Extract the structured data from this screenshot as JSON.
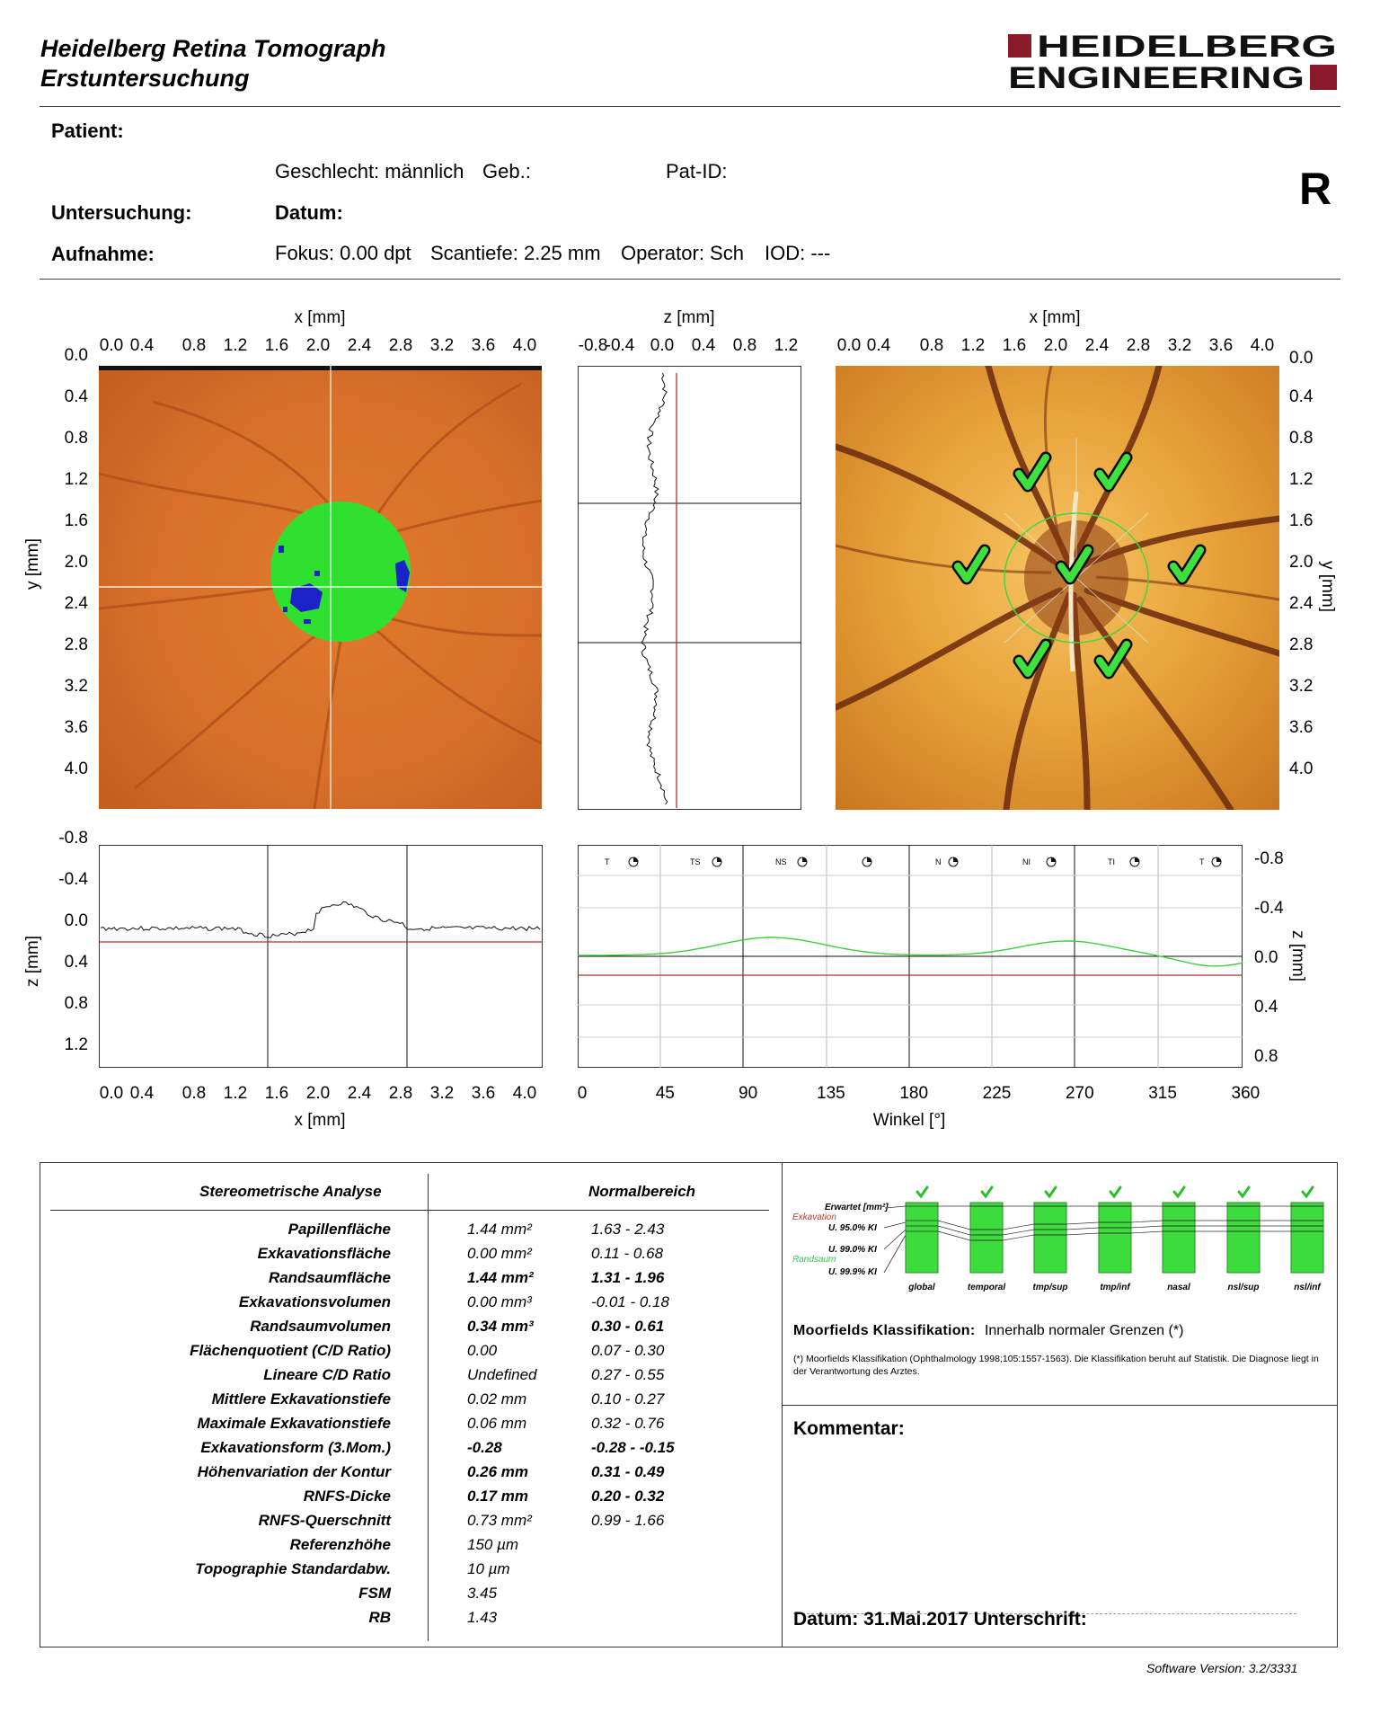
{
  "header": {
    "title_line1": "Heidelberg Retina Tomograph",
    "title_line2": "Erstuntersuchung",
    "logo_line1": "HEIDELBERG",
    "logo_line2": "ENGINEERING",
    "eye": "R"
  },
  "patient": {
    "patient_label": "Patient:",
    "sex_text": "Geschlecht: männlich",
    "dob_label": "Geb.:",
    "patid_label": "Pat-ID:",
    "exam_label": "Untersuchung:",
    "date_label": "Datum:",
    "scan_label": "Aufnahme:",
    "focus": "Fokus: 0.00 dpt",
    "depth": "Scantiefe: 2.25 mm",
    "operator": "Operator: Sch",
    "iod": "IOD: ---"
  },
  "axes": {
    "x_mm": "x [mm]",
    "y_mm": "y [mm]",
    "z_mm": "z [mm]",
    "winkel": "Winkel [°]",
    "x_ticks": [
      "0.0",
      "0.4",
      "0.8",
      "1.2",
      "1.6",
      "2.0",
      "2.4",
      "2.8",
      "3.2",
      "3.6",
      "4.0"
    ],
    "y_ticks": [
      "0.0",
      "0.4",
      "0.8",
      "1.2",
      "1.6",
      "2.0",
      "2.4",
      "2.8",
      "3.2",
      "3.6",
      "4.0"
    ],
    "z_top_ticks": [
      "-0.8",
      "-0.4",
      "0.0",
      "0.4",
      "0.8",
      "1.2"
    ],
    "z_left_ticks": [
      "-0.8",
      "-0.4",
      "0.0",
      "0.4",
      "0.8",
      "1.2"
    ],
    "z_right_ticks": [
      "-0.8",
      "-0.4",
      "0.0",
      "0.4",
      "0.8"
    ],
    "angle_ticks": [
      "0",
      "45",
      "90",
      "135",
      "180",
      "225",
      "270",
      "315",
      "360"
    ],
    "sector_labels": [
      "T",
      "TS",
      "NS",
      "N",
      "NI",
      "TI",
      "T"
    ]
  },
  "stereo": {
    "header_left": "Stereometrische Analyse",
    "header_right": "Normalbereich",
    "rows": [
      {
        "name": "Papillenfläche",
        "value": "1.44  mm²",
        "range": "1.63 -  2.43",
        "bold": false
      },
      {
        "name": "Exkavationsfläche",
        "value": "0.00  mm²",
        "range": "0.11 -  0.68",
        "bold": false
      },
      {
        "name": "Randsaumfläche",
        "value": "1.44  mm²",
        "range": "1.31 -  1.96",
        "bold": true
      },
      {
        "name": "Exkavationsvolumen",
        "value": "0.00  mm³",
        "range": "-0.01 -  0.18",
        "bold": false
      },
      {
        "name": "Randsaumvolumen",
        "value": "0.34  mm³",
        "range": "0.30 -  0.61",
        "bold": true
      },
      {
        "name": "Flächenquotient (C/D Ratio)",
        "value": "0.00",
        "range": "0.07 -  0.30",
        "bold": false
      },
      {
        "name": "Lineare C/D Ratio",
        "value": "Undefined",
        "range": "0.27 -  0.55",
        "bold": false
      },
      {
        "name": "Mittlere Exkavationstiefe",
        "value": "0.02  mm",
        "range": "0.10 -  0.27",
        "bold": false
      },
      {
        "name": "Maximale Exkavationstiefe",
        "value": "0.06  mm",
        "range": "0.32 -  0.76",
        "bold": false
      },
      {
        "name": "Exkavationsform (3.Mom.)",
        "value": "-0.28",
        "range": "-0.28 -  -0.15",
        "bold": true
      },
      {
        "name": "Höhenvariation der Kontur",
        "value": "0.26  mm",
        "range": "0.31 -  0.49",
        "bold": true
      },
      {
        "name": "RNFS-Dicke",
        "value": "0.17 mm",
        "range": "0.20 -  0.32",
        "bold": true
      },
      {
        "name": "RNFS-Querschnitt",
        "value": "0.73 mm²",
        "range": "0.99 -  1.66",
        "bold": false
      },
      {
        "name": "Referenzhöhe",
        "value": "150  µm",
        "range": "",
        "bold": false
      },
      {
        "name": "Topographie Standardabw.",
        "value": "10  µm",
        "range": "",
        "bold": false
      },
      {
        "name": "FSM",
        "value": "3.45",
        "range": "",
        "bold": false
      },
      {
        "name": "RB",
        "value": "1.43",
        "range": "",
        "bold": false
      }
    ]
  },
  "moorfields": {
    "legend": {
      "expected": "Erwartet [mm²]",
      "excavation": "Exkavation",
      "ci95": "U. 95.0% KI",
      "ci99": "U. 99.0% KI",
      "rim": "Randsaum",
      "ci999": "U. 99.9% KI"
    },
    "sectors": [
      "global",
      "temporal",
      "tmp/sup",
      "tmp/inf",
      "nasal",
      "nsl/sup",
      "nsl/inf"
    ],
    "classification_label": "Moorfields Klassifikation:",
    "classification_value": "Innerhalb normaler Grenzen (*)",
    "footnote": "(*) Moorfields Klassifikation (Ophthalmology 1998;105:1557-1563). Die Klassifikation beruht auf Statistik. Die Diagnose liegt in der Verantwortung des Arztes.",
    "colors": {
      "green": "#3ddc3d",
      "check": "#2bbf2b",
      "excavation": "#c0392b",
      "rim": "#2ecc40"
    }
  },
  "comment": {
    "label": "Kommentar:",
    "footer": "Datum: 31.Mai.2017  Unterschrift:"
  },
  "footer": {
    "software": "Software Version: 3.2/3331"
  }
}
